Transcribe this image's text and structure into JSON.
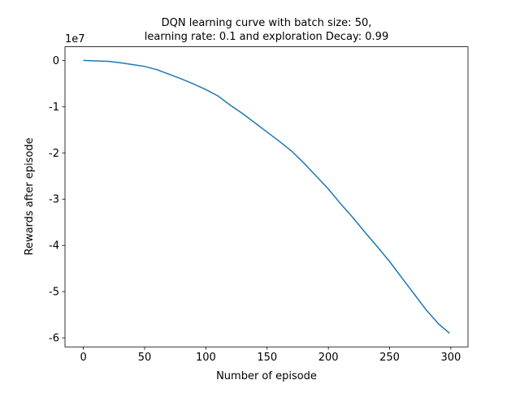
{
  "chart_data": {
    "type": "line",
    "title": [
      "DQN learning curve with batch size: 50,",
      "learning rate: 0.1 and exploration Decay: 0.99"
    ],
    "x_label": "Number of episode",
    "y_label": "Rewards after episode",
    "y_offset_label": "1e7",
    "x": [
      0,
      10,
      20,
      30,
      40,
      50,
      60,
      70,
      80,
      90,
      100,
      110,
      120,
      130,
      140,
      150,
      160,
      170,
      180,
      190,
      200,
      210,
      220,
      230,
      240,
      250,
      260,
      270,
      280,
      290,
      299
    ],
    "series": [
      {
        "color": "#1f77b4",
        "values": [
          0,
          -0.01,
          -0.02,
          -0.05,
          -0.09,
          -0.13,
          -0.2,
          -0.3,
          -0.4,
          -0.51,
          -0.63,
          -0.77,
          -0.97,
          -1.15,
          -1.35,
          -1.55,
          -1.75,
          -1.96,
          -2.22,
          -2.5,
          -2.78,
          -3.1,
          -3.4,
          -3.72,
          -4.03,
          -4.35,
          -4.7,
          -5.05,
          -5.4,
          -5.7,
          -5.9
        ]
      }
    ],
    "xlim": [
      -15,
      314
    ],
    "ylim": [
      -6.195,
      0.295
    ],
    "xticks": [
      0,
      50,
      100,
      150,
      200,
      250,
      300
    ],
    "yticks": [
      0,
      -1,
      -2,
      -3,
      -4,
      -5,
      -6
    ]
  }
}
